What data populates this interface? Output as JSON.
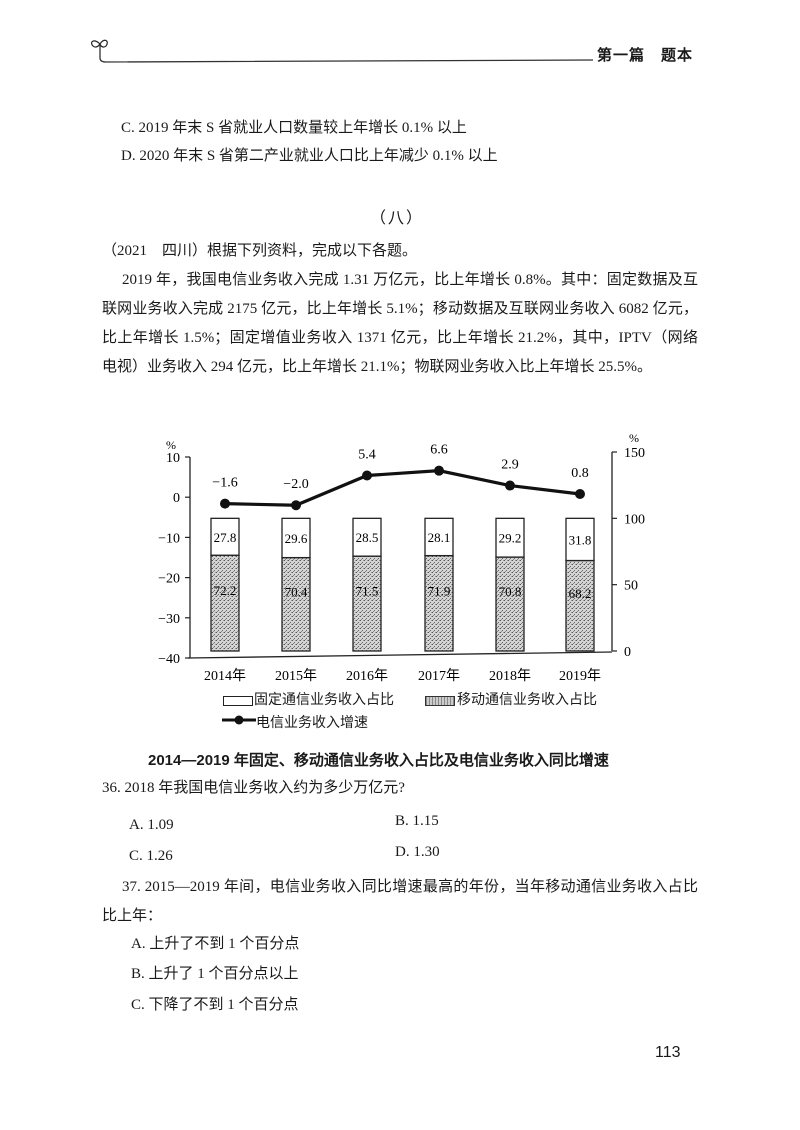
{
  "header": {
    "section": "第一篇　题本",
    "leaf_icon": "sprout-icon"
  },
  "prev_options": [
    {
      "label": "C. 2019 年末 S 省就业人口数量较上年增长 0.1% 以上"
    },
    {
      "label": "D. 2020 年末 S 省第二产业就业人口比上年减少 0.1% 以上"
    }
  ],
  "section_title": "（八）",
  "intro": "（2021　四川）根据下列资料，完成以下各题。",
  "material": "2019 年，我国电信业务收入完成 1.31 万亿元，比上年增长 0.8%。其中：固定数据及互联网业务收入完成 2175 亿元，比上年增长 5.1%；移动数据及互联网业务收入 6082 亿元，比上年增长 1.5%；固定增值业务收入 1371 亿元，比上年增长 21.2%，其中，IPTV（网络电视）业务收入 294 亿元，比上年增长 21.1%；物联网业务收入比上年增长 25.5%。",
  "chart_data": {
    "type": "bar+line",
    "title": "2014—2019 年固定、移动通信业务收入占比及电信业务收入同比增速",
    "categories": [
      "2014年",
      "2015年",
      "2016年",
      "2017年",
      "2018年",
      "2019年"
    ],
    "series": [
      {
        "name": "固定通信业务收入占比",
        "type": "stacked-bar",
        "axis": "right",
        "values": [
          27.8,
          29.6,
          28.5,
          28.1,
          29.2,
          31.8
        ]
      },
      {
        "name": "移动通信业务收入占比",
        "type": "stacked-bar",
        "axis": "right",
        "values": [
          72.2,
          70.4,
          71.5,
          71.9,
          70.8,
          68.2
        ]
      },
      {
        "name": "电信业务收入增速",
        "type": "line",
        "axis": "left",
        "values": [
          -1.6,
          -2.0,
          5.4,
          6.6,
          2.9,
          0.8
        ]
      }
    ],
    "left_axis": {
      "unit": "%",
      "ticks": [
        10,
        0,
        -10,
        -20,
        -30,
        -40
      ],
      "ylim": [
        -40,
        10
      ]
    },
    "right_axis": {
      "unit": "%",
      "ticks": [
        150,
        100,
        50,
        0
      ],
      "ylim": [
        0,
        150
      ]
    },
    "legend": [
      "固定通信业务收入占比",
      "移动通信业务收入占比",
      "电信业务收入增速"
    ],
    "legend_position": "bottom",
    "grid": false
  },
  "questions": [
    {
      "stem": "36. 2018 年我国电信业务收入约为多少万亿元?",
      "options": [
        "A. 1.09",
        "B. 1.15",
        "C. 1.26",
        "D. 1.30"
      ]
    },
    {
      "stem": "37. 2015—2019 年间，电信业务收入同比增速最高的年份，当年移动通信业务收入占比比上年：",
      "options": [
        "A. 上升了不到 1 个百分点",
        "B. 上升了 1 个百分点以上",
        "C. 下降了不到 1 个百分点"
      ]
    }
  ],
  "page_number": "113"
}
